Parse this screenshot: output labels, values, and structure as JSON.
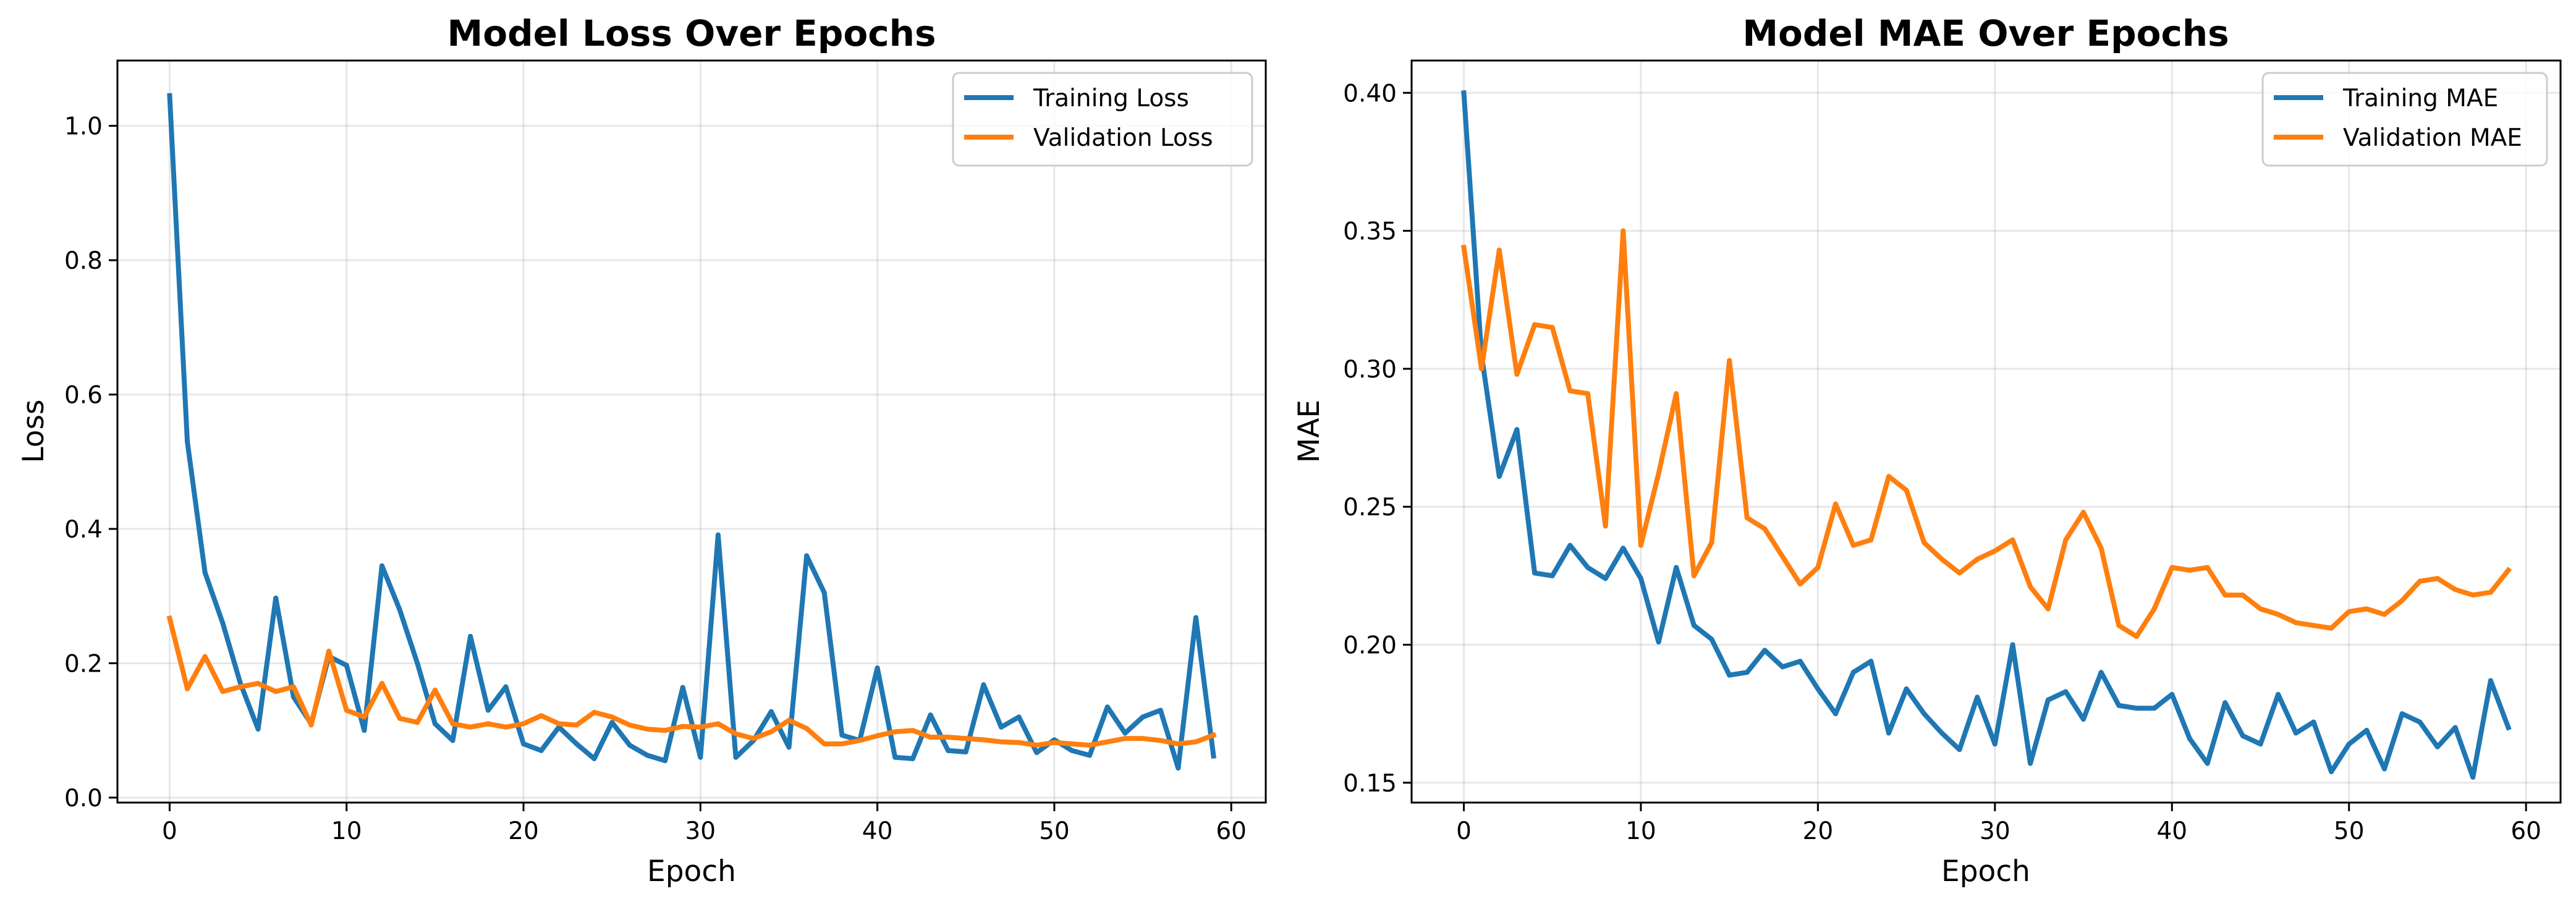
{
  "chart_data": [
    {
      "type": "line",
      "title": "Model Loss Over Epochs",
      "xlabel": "Epoch",
      "ylabel": "Loss",
      "xlim": [
        -2.95,
        61.95
      ],
      "ylim": [
        -0.0074,
        1.0972
      ],
      "xticks": [
        0,
        10,
        20,
        30,
        40,
        50,
        60
      ],
      "yticks": [
        0.0,
        0.2,
        0.4,
        0.6,
        0.8,
        1.0
      ],
      "ytick_labels": [
        "0.0",
        "0.2",
        "0.4",
        "0.6",
        "0.8",
        "1.0"
      ],
      "grid": true,
      "legend": "top-right",
      "x": [
        0,
        1,
        2,
        3,
        4,
        5,
        6,
        7,
        8,
        9,
        10,
        11,
        12,
        13,
        14,
        15,
        16,
        17,
        18,
        19,
        20,
        21,
        22,
        23,
        24,
        25,
        26,
        27,
        28,
        29,
        30,
        31,
        32,
        33,
        34,
        35,
        36,
        37,
        38,
        39,
        40,
        41,
        42,
        43,
        44,
        45,
        46,
        47,
        48,
        49,
        50,
        51,
        52,
        53,
        54,
        55,
        56,
        57,
        58,
        59
      ],
      "series": [
        {
          "name": "Training Loss",
          "color": "#1f77b4",
          "values": [
            1.045,
            0.53,
            0.335,
            0.26,
            0.17,
            0.102,
            0.297,
            0.15,
            0.11,
            0.21,
            0.197,
            0.1,
            0.345,
            0.28,
            0.2,
            0.11,
            0.085,
            0.24,
            0.13,
            0.165,
            0.08,
            0.07,
            0.105,
            0.08,
            0.058,
            0.112,
            0.078,
            0.063,
            0.055,
            0.164,
            0.06,
            0.391,
            0.06,
            0.085,
            0.128,
            0.075,
            0.36,
            0.305,
            0.093,
            0.085,
            0.193,
            0.06,
            0.058,
            0.123,
            0.07,
            0.068,
            0.168,
            0.105,
            0.12,
            0.067,
            0.086,
            0.07,
            0.063,
            0.135,
            0.096,
            0.12,
            0.13,
            0.044,
            0.268,
            0.062
          ]
        },
        {
          "name": "Validation Loss",
          "color": "#ff7f0e",
          "values": [
            0.267,
            0.162,
            0.21,
            0.158,
            0.165,
            0.17,
            0.158,
            0.165,
            0.108,
            0.218,
            0.13,
            0.12,
            0.17,
            0.118,
            0.112,
            0.16,
            0.11,
            0.105,
            0.11,
            0.105,
            0.11,
            0.122,
            0.11,
            0.108,
            0.127,
            0.12,
            0.108,
            0.102,
            0.1,
            0.106,
            0.105,
            0.11,
            0.095,
            0.088,
            0.098,
            0.115,
            0.103,
            0.08,
            0.08,
            0.085,
            0.092,
            0.098,
            0.1,
            0.09,
            0.09,
            0.088,
            0.086,
            0.083,
            0.082,
            0.078,
            0.082,
            0.08,
            0.078,
            0.083,
            0.088,
            0.088,
            0.085,
            0.08,
            0.083,
            0.093
          ]
        }
      ]
    },
    {
      "type": "line",
      "title": "Model MAE Over Epochs",
      "xlabel": "Epoch",
      "ylabel": "MAE",
      "xlim": [
        -2.95,
        61.95
      ],
      "ylim": [
        0.1428,
        0.4117
      ],
      "xticks": [
        0,
        10,
        20,
        30,
        40,
        50,
        60
      ],
      "yticks": [
        0.15,
        0.2,
        0.25,
        0.3,
        0.35,
        0.4
      ],
      "ytick_labels": [
        "0.15",
        "0.20",
        "0.25",
        "0.30",
        "0.35",
        "0.40"
      ],
      "grid": true,
      "legend": "top-right",
      "x": [
        0,
        1,
        2,
        3,
        4,
        5,
        6,
        7,
        8,
        9,
        10,
        11,
        12,
        13,
        14,
        15,
        16,
        17,
        18,
        19,
        20,
        21,
        22,
        23,
        24,
        25,
        26,
        27,
        28,
        29,
        30,
        31,
        32,
        33,
        34,
        35,
        36,
        37,
        38,
        39,
        40,
        41,
        42,
        43,
        44,
        45,
        46,
        47,
        48,
        49,
        50,
        51,
        52,
        53,
        54,
        55,
        56,
        57,
        58,
        59
      ],
      "series": [
        {
          "name": "Training MAE",
          "color": "#1f77b4",
          "values": [
            0.4,
            0.305,
            0.261,
            0.278,
            0.226,
            0.225,
            0.236,
            0.228,
            0.224,
            0.235,
            0.224,
            0.201,
            0.228,
            0.207,
            0.202,
            0.189,
            0.19,
            0.198,
            0.192,
            0.194,
            0.184,
            0.175,
            0.19,
            0.194,
            0.168,
            0.184,
            0.175,
            0.168,
            0.162,
            0.181,
            0.164,
            0.2,
            0.157,
            0.18,
            0.183,
            0.173,
            0.19,
            0.178,
            0.177,
            0.177,
            0.182,
            0.166,
            0.157,
            0.179,
            0.167,
            0.164,
            0.182,
            0.168,
            0.172,
            0.154,
            0.164,
            0.169,
            0.155,
            0.175,
            0.172,
            0.163,
            0.17,
            0.152,
            0.187,
            0.17
          ]
        },
        {
          "name": "Validation MAE",
          "color": "#ff7f0e",
          "values": [
            0.344,
            0.3,
            0.343,
            0.298,
            0.316,
            0.315,
            0.292,
            0.291,
            0.243,
            0.35,
            0.236,
            0.262,
            0.291,
            0.225,
            0.237,
            0.303,
            0.246,
            0.242,
            0.232,
            0.222,
            0.228,
            0.251,
            0.236,
            0.238,
            0.261,
            0.256,
            0.237,
            0.231,
            0.226,
            0.231,
            0.234,
            0.238,
            0.221,
            0.213,
            0.238,
            0.248,
            0.235,
            0.207,
            0.203,
            0.213,
            0.228,
            0.227,
            0.228,
            0.218,
            0.218,
            0.213,
            0.211,
            0.208,
            0.207,
            0.206,
            0.212,
            0.213,
            0.211,
            0.216,
            0.223,
            0.224,
            0.22,
            0.218,
            0.219,
            0.227
          ]
        }
      ]
    }
  ]
}
